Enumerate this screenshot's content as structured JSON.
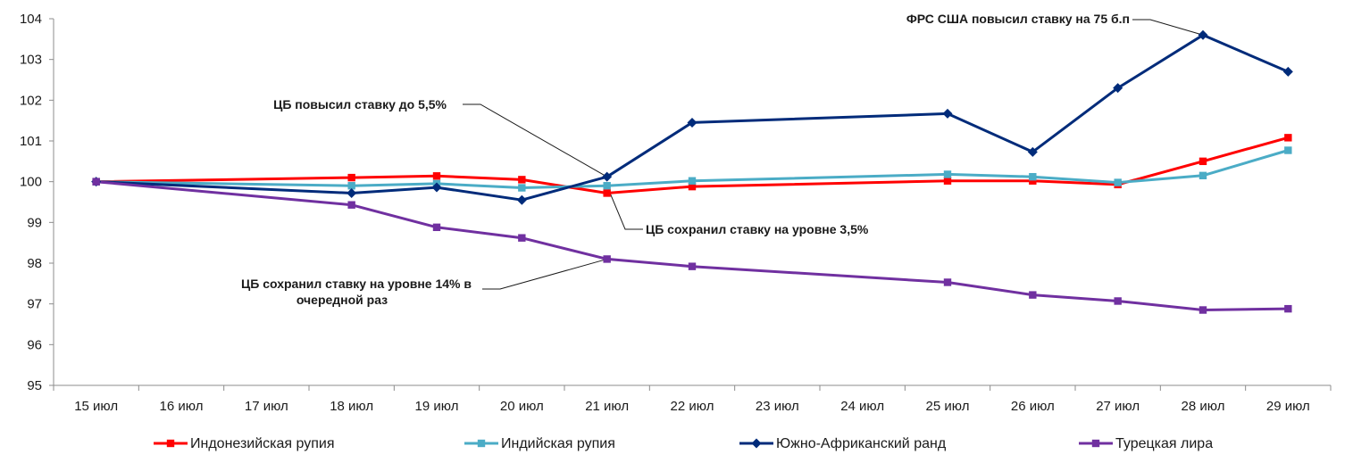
{
  "chart_data": {
    "type": "line",
    "title": "",
    "xlabel": "",
    "ylabel": "",
    "categories": [
      "15 июл",
      "16 июл",
      "17 июл",
      "18 июл",
      "19 июл",
      "20 июл",
      "21 июл",
      "22 июл",
      "23 июл",
      "24 июл",
      "25 июл",
      "26 июл",
      "27 июл",
      "28 июл",
      "29 июл"
    ],
    "ylim": [
      95,
      104
    ],
    "yticks": [
      "95",
      "96",
      "97",
      "98",
      "99",
      "100",
      "101",
      "102",
      "103",
      "104"
    ],
    "grid": false,
    "legend_position": "bottom",
    "series": [
      {
        "name": "Индонезийская рупия",
        "color": "#ff0000",
        "marker": "square",
        "points": [
          [
            0,
            100.0
          ],
          [
            3,
            100.1
          ],
          [
            4,
            100.14
          ],
          [
            5,
            100.05
          ],
          [
            6,
            99.72
          ],
          [
            7,
            99.88
          ],
          [
            10,
            100.02
          ],
          [
            11,
            100.02
          ],
          [
            12,
            99.93
          ],
          [
            13,
            100.5
          ],
          [
            14,
            101.08
          ]
        ]
      },
      {
        "name": "Индийская рупия",
        "color": "#4bacc6",
        "marker": "square",
        "points": [
          [
            0,
            100.0
          ],
          [
            3,
            99.9
          ],
          [
            4,
            99.95
          ],
          [
            5,
            99.85
          ],
          [
            6,
            99.9
          ],
          [
            7,
            100.02
          ],
          [
            10,
            100.18
          ],
          [
            11,
            100.12
          ],
          [
            12,
            99.98
          ],
          [
            13,
            100.15
          ],
          [
            14,
            100.77
          ]
        ]
      },
      {
        "name": "Южно-Африканский ранд",
        "color": "#002b7a",
        "marker": "diamond",
        "points": [
          [
            0,
            100.0
          ],
          [
            3,
            99.72
          ],
          [
            4,
            99.86
          ],
          [
            5,
            99.55
          ],
          [
            6,
            100.12
          ],
          [
            7,
            101.45
          ],
          [
            10,
            101.67
          ],
          [
            11,
            100.73
          ],
          [
            12,
            102.3
          ],
          [
            13,
            103.6
          ],
          [
            14,
            102.7
          ]
        ]
      },
      {
        "name": "Турецкая лира",
        "color": "#7030a0",
        "marker": "square",
        "points": [
          [
            0,
            100.0
          ],
          [
            3,
            99.43
          ],
          [
            4,
            98.88
          ],
          [
            5,
            98.62
          ],
          [
            6,
            98.1
          ],
          [
            7,
            97.92
          ],
          [
            10,
            97.53
          ],
          [
            11,
            97.22
          ],
          [
            12,
            97.07
          ],
          [
            13,
            96.85
          ],
          [
            14,
            96.88
          ]
        ]
      }
    ],
    "annotations": [
      {
        "lines": [
          "ФРС США повысил ставку на 75 б.п"
        ],
        "target_series": 2,
        "target_index": 13
      },
      {
        "lines": [
          "ЦБ повысил ставку до 5,5%"
        ],
        "target_series": 2,
        "target_index": 6
      },
      {
        "lines": [
          "ЦБ сохранил ставку на уровне 3,5%"
        ],
        "target_series": 1,
        "target_index": 6
      },
      {
        "lines": [
          "ЦБ сохранил ставку на уровне 14% в",
          "очередной раз"
        ],
        "target_series": 3,
        "target_index": 6
      }
    ]
  }
}
